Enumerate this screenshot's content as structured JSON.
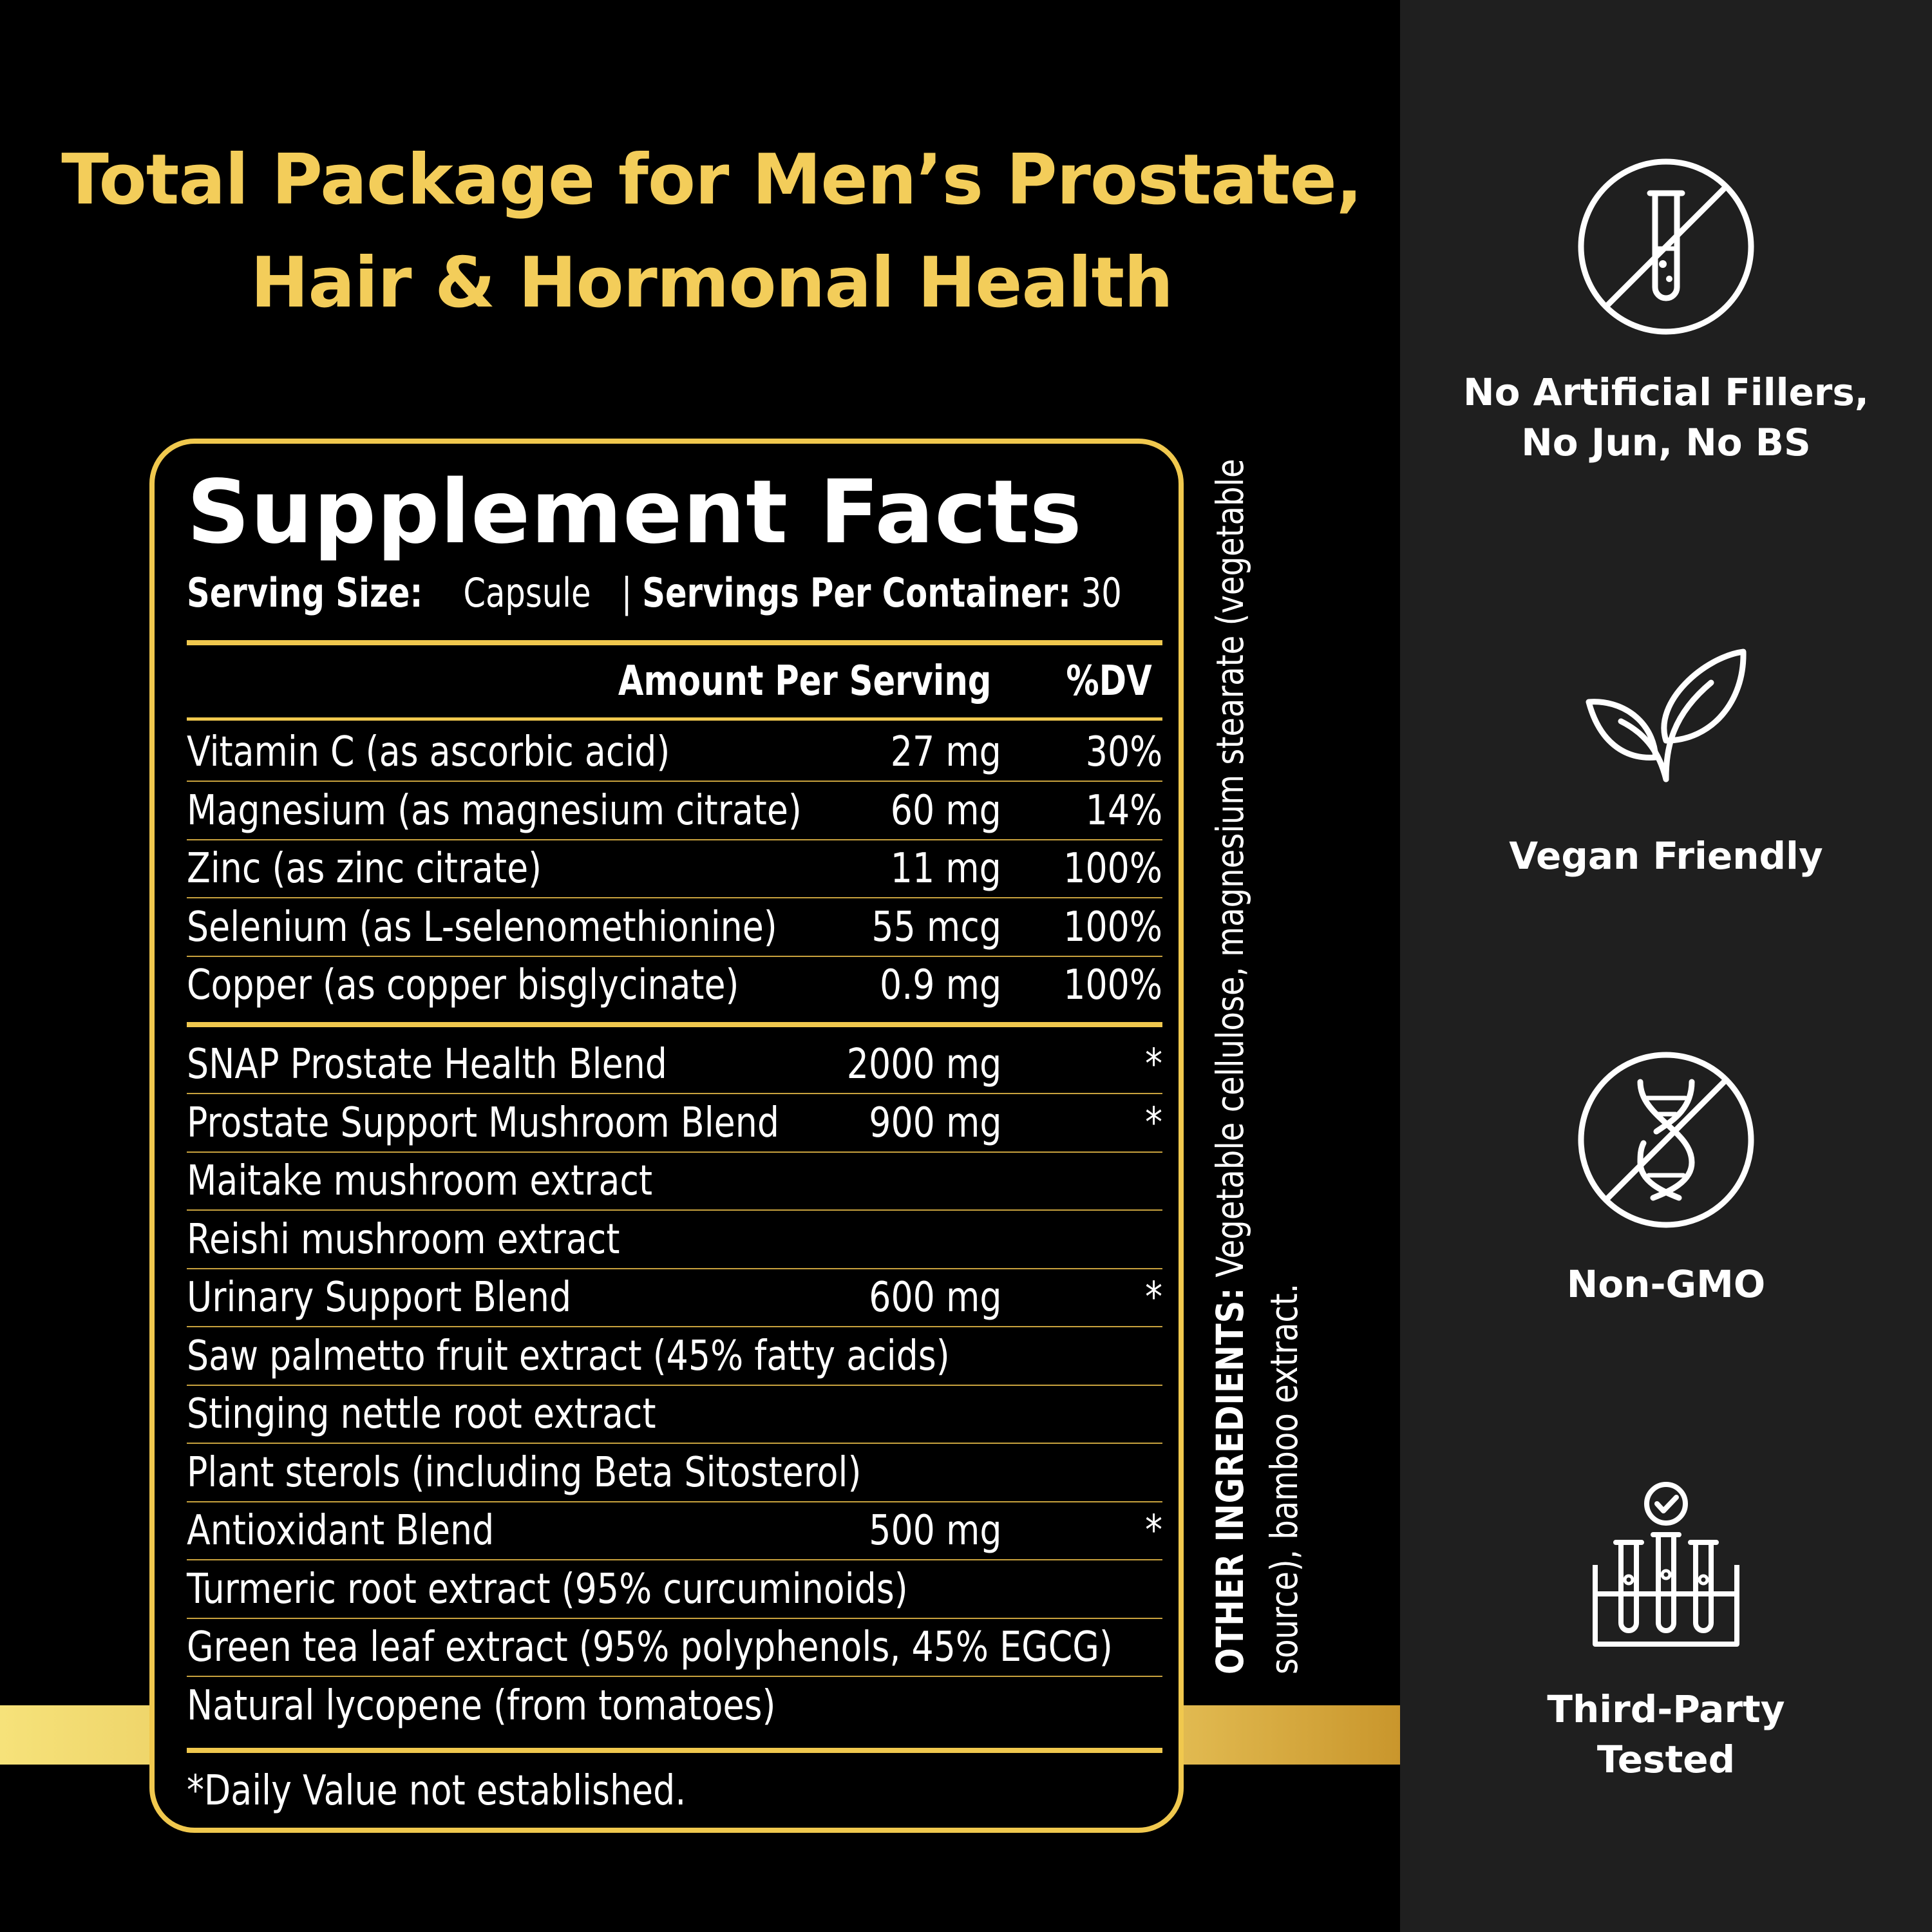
{
  "headline": {
    "line1": "Total Package for Men’s Prostate,",
    "line2": "Hair & Hormonal Health"
  },
  "supplement_facts": {
    "title": "Supplement Facts",
    "serving_size_label": "Serving Size:",
    "serving_size_value": "Capsule",
    "servings_per_container_label": "Servings Per Container:",
    "servings_per_container_value": "30",
    "separator": "|",
    "col_amount": "Amount Per Serving",
    "col_dv": "%DV",
    "vitamins": [
      {
        "name": "Vitamin C (as ascorbic acid)",
        "amount": "27 mg",
        "dv": "30%"
      },
      {
        "name": "Magnesium (as magnesium citrate)",
        "amount": "60 mg",
        "dv": "14%"
      },
      {
        "name": "Zinc (as zinc citrate)",
        "amount": "11 mg",
        "dv": "100%"
      },
      {
        "name": "Selenium (as L-selenomethionine)",
        "amount": "55 mcg",
        "dv": "100%"
      },
      {
        "name": "Copper (as copper bisglycinate)",
        "amount": "0.9 mg",
        "dv": "100%"
      }
    ],
    "blends": [
      {
        "name": "SNAP Prostate Health Blend",
        "amount": "2000 mg",
        "dv": "*"
      },
      {
        "name": "Prostate Support Mushroom Blend",
        "amount": "900 mg",
        "dv": "*"
      },
      {
        "name": "Maitake mushroom extract",
        "amount": "",
        "dv": ""
      },
      {
        "name": "Reishi mushroom extract",
        "amount": "",
        "dv": ""
      },
      {
        "name": "Urinary Support Blend",
        "amount": "600 mg",
        "dv": "*"
      },
      {
        "name": "Saw palmetto fruit extract (45% fatty acids)",
        "amount": "",
        "dv": ""
      },
      {
        "name": "Stinging nettle root extract",
        "amount": "",
        "dv": ""
      },
      {
        "name": "Plant sterols (including Beta Sitosterol)",
        "amount": "",
        "dv": ""
      },
      {
        "name": "Antioxidant Blend",
        "amount": "500 mg",
        "dv": "*"
      },
      {
        "name": "Turmeric root extract (95% curcuminoids)",
        "amount": "",
        "dv": ""
      },
      {
        "name": "Green tea leaf extract (95% polyphenols, 45% EGCG)",
        "amount": "",
        "dv": ""
      },
      {
        "name": "Natural lycopene (from tomatoes)",
        "amount": "",
        "dv": ""
      }
    ],
    "footnote": "*Daily Value not established."
  },
  "other_ingredients": {
    "label": "OTHER INGREDIENTS:",
    "text": "Vegetable cellulose, magnesium stearate (vegetable source), bamboo extract."
  },
  "badges": [
    {
      "icon": "no-test-tube-icon",
      "line1": "No Artificial Fillers,",
      "line2": "No Jun, No BS"
    },
    {
      "icon": "leaf-icon",
      "line1": "Vegan Friendly",
      "line2": ""
    },
    {
      "icon": "no-dna-icon",
      "line1": "Non-GMO",
      "line2": ""
    },
    {
      "icon": "lab-test-tubes-icon",
      "line1": "Third-Party",
      "line2": "Tested"
    }
  ],
  "colors": {
    "gold": "#f0c84e",
    "headline_gold": "#f3cd5a",
    "background": "#000000",
    "sidebar": "#1f1f1f"
  }
}
